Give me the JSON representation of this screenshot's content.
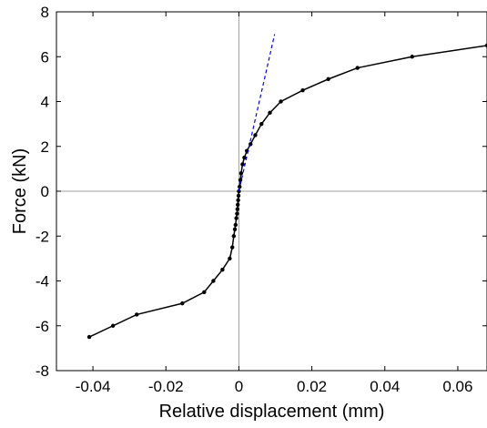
{
  "chart_data": {
    "type": "line",
    "title": "",
    "xlabel": "Relative displacement (mm)",
    "ylabel": "Force (kN)",
    "xlim": [
      -0.05,
      0.068
    ],
    "ylim": [
      -8,
      8
    ],
    "x_ticks": [
      -0.04,
      -0.02,
      0,
      0.02,
      0.04,
      0.06
    ],
    "x_tick_labels": [
      "-0.04",
      "-0.02",
      "0",
      "0.02",
      "0.04",
      "0.06"
    ],
    "y_ticks": [
      -8,
      -6,
      -4,
      -2,
      0,
      2,
      4,
      6,
      8
    ],
    "y_tick_labels": [
      "-8",
      "-6",
      "-4",
      "-2",
      "0",
      "2",
      "4",
      "6",
      "8"
    ],
    "grid": false,
    "zero_lines": true,
    "series": [
      {
        "style": "solid-with-markers",
        "color": "#000000",
        "x": [
          -0.041,
          -0.0345,
          -0.028,
          -0.0155,
          -0.0095,
          -0.007,
          -0.0045,
          -0.0025,
          -0.0018,
          -0.0014,
          -0.0011,
          -0.0009,
          -0.0007,
          -0.0005,
          -0.0004,
          -0.0003,
          -0.0002,
          -0.0001,
          0.0,
          0.0002,
          0.0004,
          0.0006,
          0.001,
          0.0015,
          0.0022,
          0.0032,
          0.0045,
          0.0062,
          0.0085,
          0.0115,
          0.0175,
          0.0245,
          0.0325,
          0.0475,
          0.068
        ],
        "y": [
          -6.5,
          -6.0,
          -5.5,
          -5.0,
          -4.5,
          -4.0,
          -3.5,
          -3.0,
          -2.5,
          -2.0,
          -1.7,
          -1.5,
          -1.2,
          -1.0,
          -0.8,
          -0.6,
          -0.4,
          -0.2,
          0.0,
          0.2,
          0.5,
          0.8,
          1.2,
          1.5,
          1.8,
          2.1,
          2.5,
          3.0,
          3.5,
          4.0,
          4.5,
          5.0,
          5.5,
          6.0,
          6.5
        ]
      },
      {
        "style": "dashed",
        "color": "#0000ff",
        "x": [
          0.0,
          0.0098
        ],
        "y": [
          0.0,
          7.0
        ]
      }
    ]
  }
}
